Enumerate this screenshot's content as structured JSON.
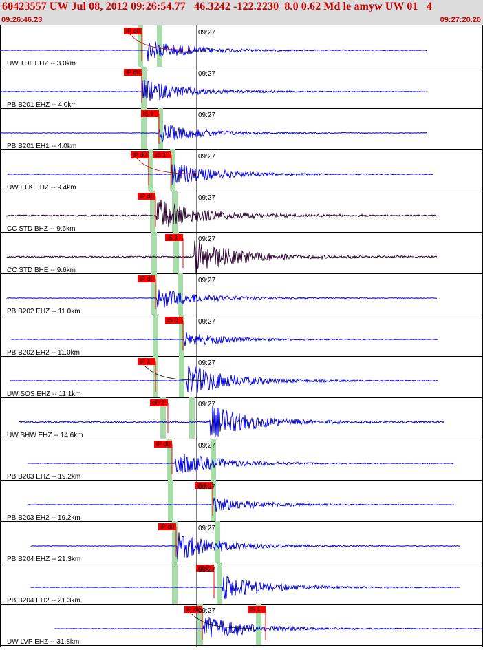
{
  "header": {
    "title": "60423557 UW Jul 08, 2012 09:26:54.77   46.3242 -122.2230  8.0 0.62 Md le amyw UW 01   4",
    "time_start": "09:26:46.23",
    "time_end": "09:27:20.20"
  },
  "minute_label": "09:27",
  "colors": {
    "trace_blue": "#0000dd",
    "trace_dark": "#2a0030",
    "pick_red": "#ff0000",
    "pick_band": "#a8dca8",
    "grid": "#000000"
  },
  "traces": [
    {
      "label": "UW TDL EHZ -- 3.0km",
      "picks": [
        "iP d0"
      ],
      "color": "blue"
    },
    {
      "label": "PB B201 EHZ -- 4.0km",
      "picks": [
        "iP d0"
      ],
      "color": "blue"
    },
    {
      "label": "PB B201 EH1 -- 4.0km",
      "picks": [
        "iS 1"
      ],
      "color": "blue"
    },
    {
      "label": "UW ELK EHZ -- 9.4km",
      "picks": [
        "iP d0",
        "iS 1"
      ],
      "color": "blue"
    },
    {
      "label": "CC STD BHZ -- 9.6km",
      "picks": [
        "iP d0"
      ],
      "color": "dark"
    },
    {
      "label": "CC STD BHE -- 9.6km",
      "picks": [
        "iS 1"
      ],
      "color": "dark"
    },
    {
      "label": "PB B202 EHZ -- 11.0km",
      "picks": [
        "iP d0"
      ],
      "color": "blue"
    },
    {
      "label": "PB B202 EH2 -- 11.0km",
      "picks": [
        "iS 0"
      ],
      "color": "blue"
    },
    {
      "label": "UW SOS EHZ -- 11.1km",
      "picks": [
        "iP 1"
      ],
      "color": "blue"
    },
    {
      "label": "UW SHW EHZ -- 14.6km",
      "picks": [
        "eP 2"
      ],
      "color": "blue"
    },
    {
      "label": "PB B203 EHZ -- 19.2km",
      "picks": [
        "iP d0"
      ],
      "color": "blue"
    },
    {
      "label": "PB B203 EH2 -- 19.2km",
      "picks": [
        "iS 1"
      ],
      "color": "blue"
    },
    {
      "label": "PB B204 EHZ -- 21.3km",
      "picks": [
        "iP d0"
      ],
      "color": "blue"
    },
    {
      "label": "PB B204 EH2 -- 21.3km",
      "picks": [
        "iS 0"
      ],
      "color": "blue"
    },
    {
      "label": "UW LVP EHZ -- 31.8km",
      "picks": [
        "iP d0",
        "iS 1"
      ],
      "color": "blue"
    }
  ]
}
